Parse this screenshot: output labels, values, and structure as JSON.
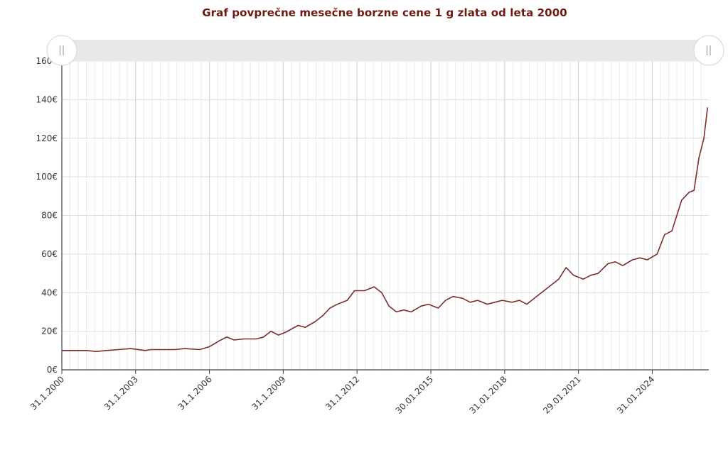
{
  "chart_data": {
    "type": "line",
    "title": "Graf povprečne mesečne borzne cene 1 g zlata od leta 2000",
    "xlabel": "",
    "ylabel": "",
    "ylim": [
      0,
      160
    ],
    "y_ticks": [
      "0€",
      "20€",
      "40€",
      "60€",
      "80€",
      "100€",
      "120€",
      "140€",
      "160€"
    ],
    "x_ticks": [
      {
        "label": "31.1.2000",
        "x": 2000.0
      },
      {
        "label": "31.1.2003",
        "x": 2003.0
      },
      {
        "label": "31.1.2006",
        "x": 2006.0
      },
      {
        "label": "31.1.2009",
        "x": 2009.0
      },
      {
        "label": "31.1.2012",
        "x": 2012.0
      },
      {
        "label": "30.01.2015",
        "x": 2015.0
      },
      {
        "label": "31.01.2018",
        "x": 2018.0
      },
      {
        "label": "29.01.2021",
        "x": 2021.0
      },
      {
        "label": "31.01.2024",
        "x": 2024.0
      }
    ],
    "xlim": [
      2000.0,
      2026.3
    ],
    "grid": true,
    "line_color": "#7a2e2a",
    "series": [
      {
        "name": "",
        "x": [
          2000.0,
          2000.5,
          2001.0,
          2001.4,
          2001.8,
          2002.3,
          2002.8,
          2003.4,
          2003.6,
          2004.0,
          2004.6,
          2005.0,
          2005.6,
          2006.0,
          2006.4,
          2006.7,
          2007.0,
          2007.4,
          2007.9,
          2008.2,
          2008.5,
          2008.8,
          2009.1,
          2009.6,
          2009.9,
          2010.3,
          2010.6,
          2010.9,
          2011.2,
          2011.6,
          2011.9,
          2012.3,
          2012.7,
          2013.0,
          2013.3,
          2013.6,
          2013.9,
          2014.2,
          2014.6,
          2014.9,
          2015.3,
          2015.6,
          2015.9,
          2016.3,
          2016.6,
          2016.9,
          2017.3,
          2017.6,
          2017.9,
          2018.3,
          2018.6,
          2018.9,
          2019.2,
          2019.5,
          2019.8,
          2020.2,
          2020.5,
          2020.8,
          2021.2,
          2021.5,
          2021.8,
          2022.2,
          2022.5,
          2022.8,
          2023.2,
          2023.5,
          2023.8,
          2024.2,
          2024.5,
          2024.8,
          2025.0,
          2025.2,
          2025.5,
          2025.7,
          2025.9,
          2026.1,
          2026.25
        ],
        "y": [
          10,
          10,
          10,
          9.5,
          10,
          10.5,
          11,
          10,
          10.5,
          10.5,
          10.5,
          11,
          10.5,
          12,
          15,
          17,
          15.5,
          16,
          16,
          17,
          20,
          18,
          19.5,
          23,
          22,
          25,
          28,
          32,
          34,
          36,
          41,
          41,
          43,
          40,
          33,
          30,
          31,
          30,
          33,
          34,
          32,
          36,
          38,
          37,
          35,
          36,
          34,
          35,
          36,
          35,
          36,
          34,
          37,
          40,
          43,
          47,
          53,
          49,
          47,
          49,
          50,
          55,
          56,
          54,
          57,
          58,
          57,
          60,
          70,
          72,
          80,
          88,
          92,
          93,
          110,
          120,
          136
        ]
      }
    ]
  }
}
